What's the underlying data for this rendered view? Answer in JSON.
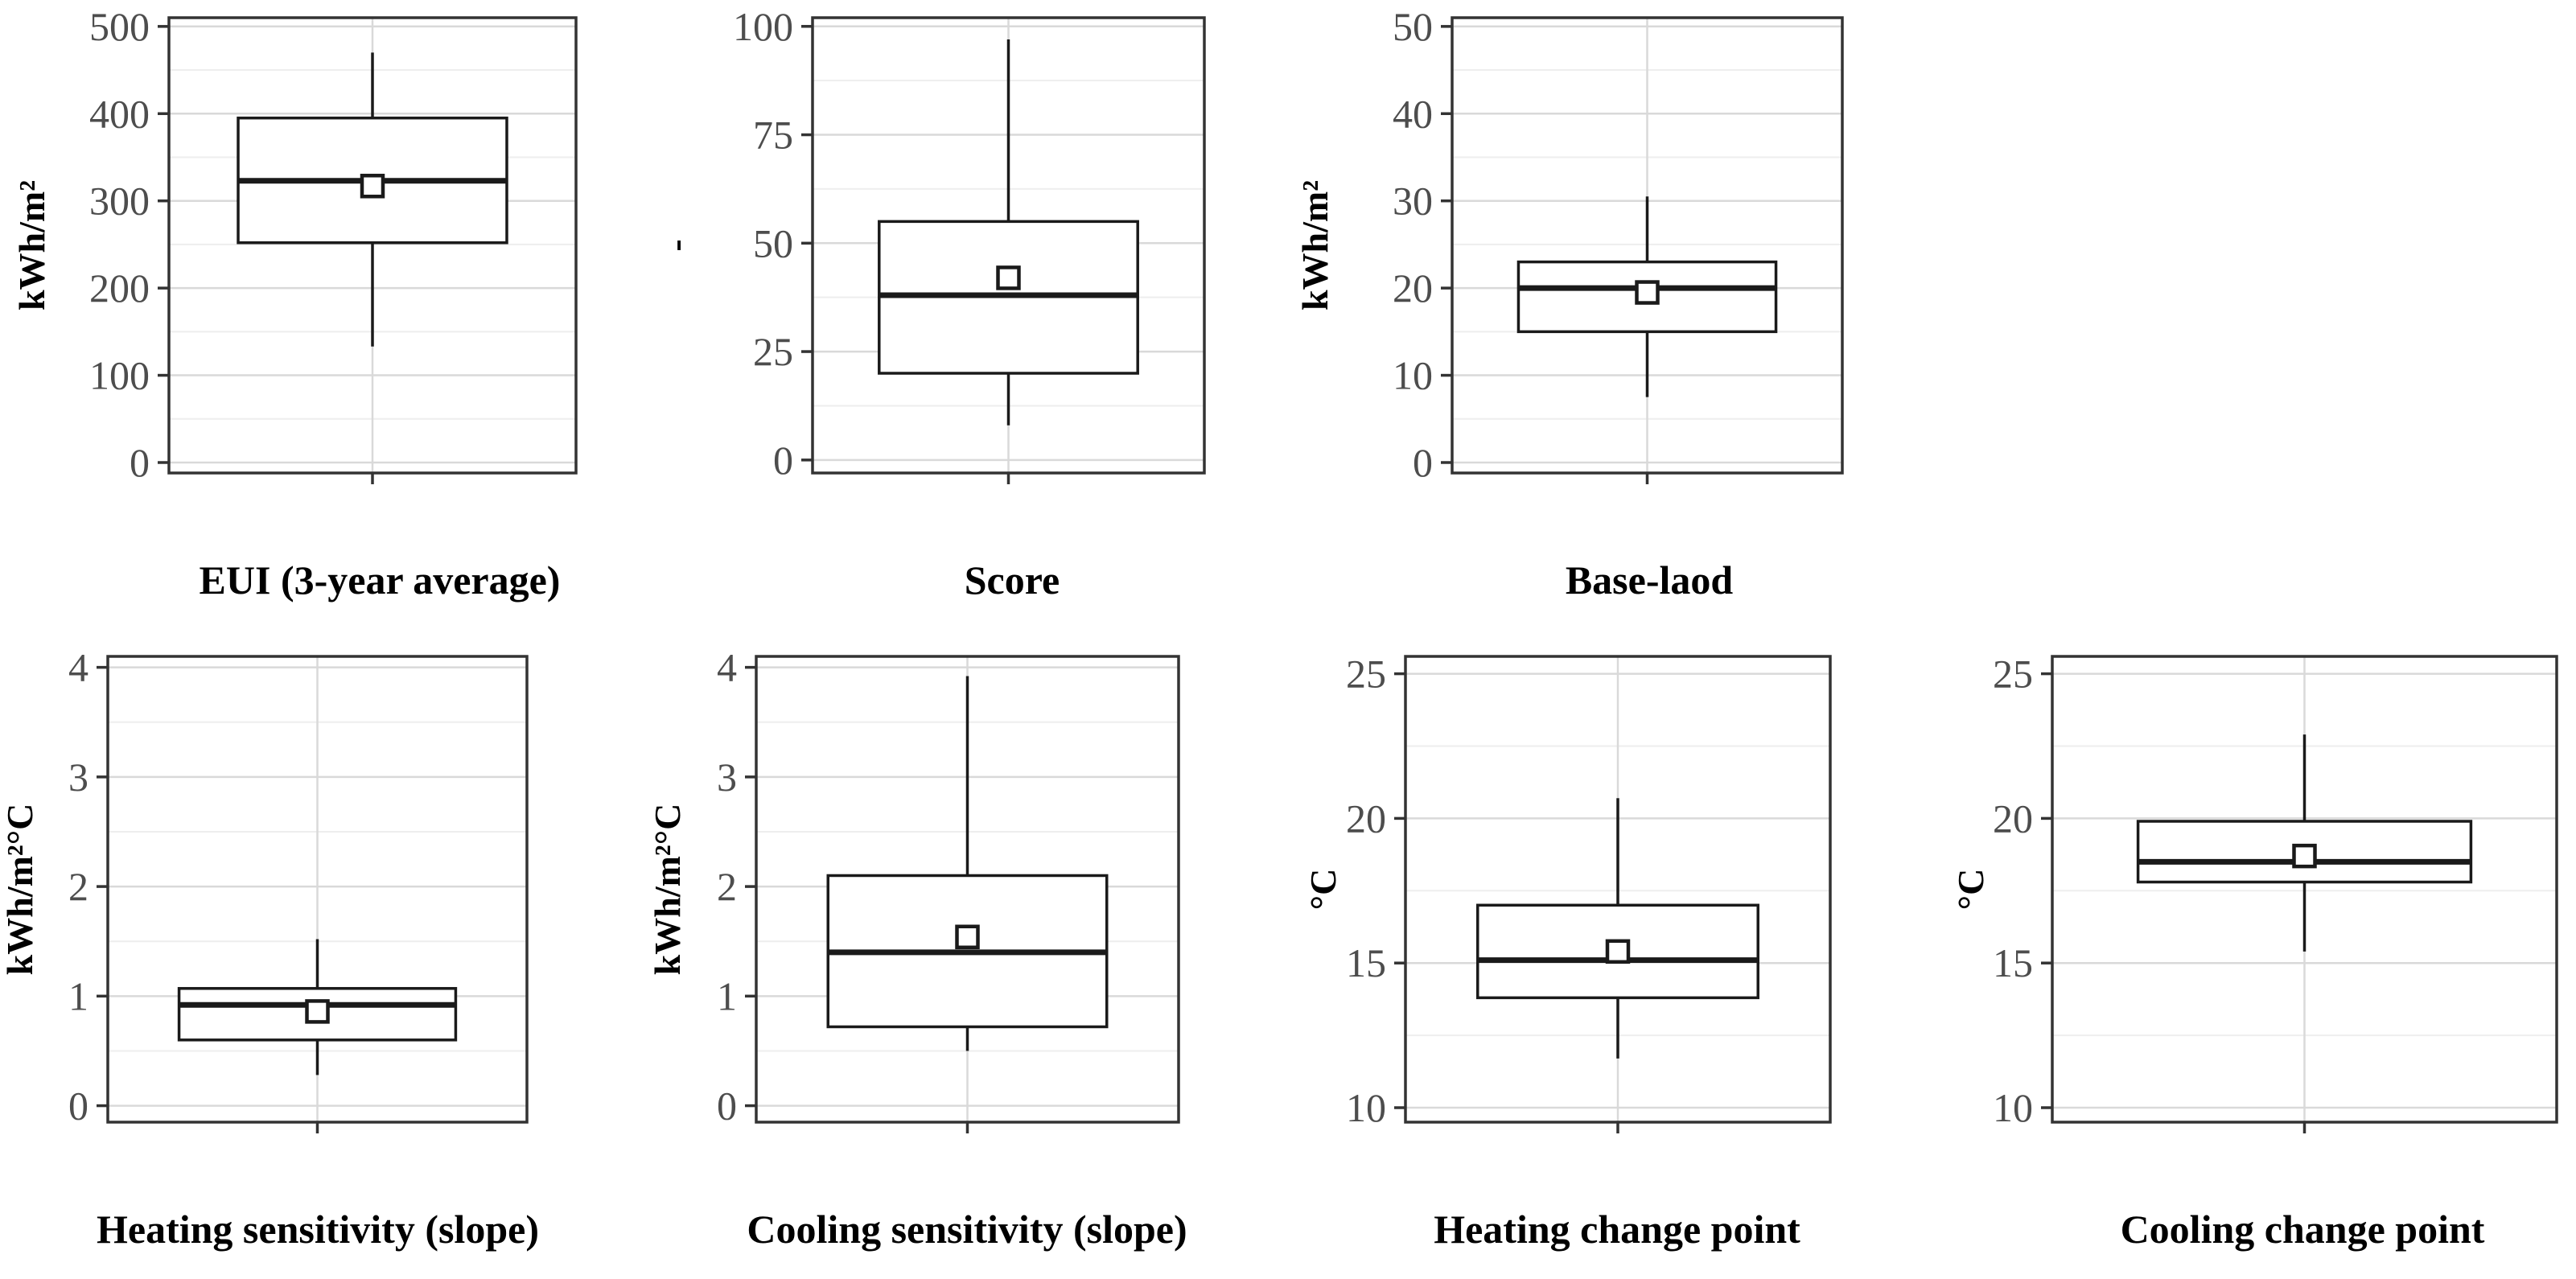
{
  "chart_data": [
    {
      "type": "boxplot",
      "xlabel": "EUI (3-year average)",
      "ylabel": "kWh/m²",
      "ylim": [
        -12,
        510
      ],
      "yticks": [
        0,
        100,
        200,
        300,
        400,
        500
      ],
      "tick_labels": [
        "0",
        "100",
        "200",
        "300",
        "400",
        "500"
      ],
      "stats": {
        "whisker_low": 133,
        "q1": 252,
        "median": 323,
        "q3": 395,
        "whisker_high": 470,
        "mean": 317
      }
    },
    {
      "type": "boxplot",
      "xlabel": "Score",
      "ylabel": "-",
      "ylim": [
        -3,
        102
      ],
      "yticks": [
        0,
        25,
        50,
        75,
        100
      ],
      "tick_labels": [
        "0",
        "25",
        "50",
        "75",
        "100"
      ],
      "stats": {
        "whisker_low": 8,
        "q1": 20,
        "median": 38,
        "q3": 55,
        "whisker_high": 97,
        "mean": 42
      }
    },
    {
      "type": "boxplot",
      "xlabel": "Base-laod",
      "ylabel": "kWh/m²",
      "ylim": [
        -1.2,
        51
      ],
      "yticks": [
        0,
        10,
        20,
        30,
        40,
        50
      ],
      "tick_labels": [
        "0",
        "10",
        "20",
        "30",
        "40",
        "50"
      ],
      "stats": {
        "whisker_low": 7.5,
        "q1": 15,
        "median": 20,
        "q3": 23,
        "whisker_high": 30.5,
        "mean": 19.5
      }
    },
    {
      "type": "boxplot",
      "xlabel": "Heating sensitivity (slope)",
      "ylabel": "kWh/m²°C",
      "ylim": [
        -0.15,
        4.1
      ],
      "yticks": [
        0,
        1,
        2,
        3,
        4
      ],
      "tick_labels": [
        "0",
        "1",
        "2",
        "3",
        "4"
      ],
      "stats": {
        "whisker_low": 0.28,
        "q1": 0.6,
        "median": 0.92,
        "q3": 1.07,
        "whisker_high": 1.52,
        "mean": 0.86
      }
    },
    {
      "type": "boxplot",
      "xlabel": "Cooling sensitivity (slope)",
      "ylabel": "kWh/m²°C",
      "ylim": [
        -0.15,
        4.1
      ],
      "yticks": [
        0,
        1,
        2,
        3,
        4
      ],
      "tick_labels": [
        "0",
        "1",
        "2",
        "3",
        "4"
      ],
      "stats": {
        "whisker_low": 0.5,
        "q1": 0.72,
        "median": 1.4,
        "q3": 2.1,
        "whisker_high": 3.92,
        "mean": 1.54
      }
    },
    {
      "type": "boxplot",
      "xlabel": "Heating change point",
      "ylabel": "°C",
      "ylim": [
        9.5,
        25.6
      ],
      "yticks": [
        10,
        15,
        20,
        25
      ],
      "tick_labels": [
        "10",
        "15",
        "20",
        "25"
      ],
      "stats": {
        "whisker_low": 11.7,
        "q1": 13.8,
        "median": 15.1,
        "q3": 17,
        "whisker_high": 20.7,
        "mean": 15.4
      }
    },
    {
      "type": "boxplot",
      "xlabel": "Cooling change point",
      "ylabel": "°C",
      "ylim": [
        9.5,
        25.6
      ],
      "yticks": [
        10,
        15,
        20,
        25
      ],
      "tick_labels": [
        "10",
        "15",
        "20",
        "25"
      ],
      "stats": {
        "whisker_low": 15.4,
        "q1": 17.8,
        "median": 18.5,
        "q3": 19.9,
        "whisker_high": 22.9,
        "mean": 18.7
      }
    }
  ]
}
